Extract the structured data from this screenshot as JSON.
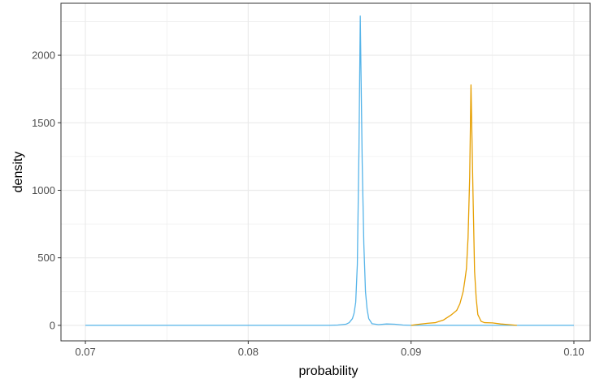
{
  "chart_data": {
    "type": "line",
    "title": "",
    "xlabel": "probability",
    "ylabel": "density",
    "xlim": [
      0.0685,
      0.101
    ],
    "ylim": [
      -115,
      2385
    ],
    "grid": true,
    "legend": "none",
    "x_ticks": [
      0.07,
      0.08,
      0.09,
      0.1
    ],
    "x_tick_labels": [
      "0.07",
      "0.08",
      "0.09",
      "0.10"
    ],
    "x_minor_ticks": [
      0.075,
      0.085,
      0.095
    ],
    "y_ticks": [
      0,
      500,
      1000,
      1500,
      2000
    ],
    "y_tick_labels": [
      "0",
      "500",
      "1000",
      "1500",
      "2000"
    ],
    "y_minor_ticks": [
      250,
      750,
      1250,
      1750,
      2250
    ],
    "colors": {
      "background": "#ffffff",
      "grid": "#ebebeb",
      "border": "#333333"
    },
    "series": [
      {
        "color": "#56B4E9",
        "points": [
          [
            0.07,
            0
          ],
          [
            0.08,
            0
          ],
          [
            0.085,
            0
          ],
          [
            0.0855,
            2
          ],
          [
            0.086,
            8
          ],
          [
            0.0862,
            20
          ],
          [
            0.0864,
            50
          ],
          [
            0.0865,
            90
          ],
          [
            0.0866,
            170
          ],
          [
            0.0867,
            450
          ],
          [
            0.0868,
            1300
          ],
          [
            0.08688,
            2290
          ],
          [
            0.087,
            1200
          ],
          [
            0.0871,
            600
          ],
          [
            0.0872,
            250
          ],
          [
            0.0873,
            120
          ],
          [
            0.0874,
            50
          ],
          [
            0.0876,
            12
          ],
          [
            0.088,
            5
          ],
          [
            0.0885,
            10
          ],
          [
            0.089,
            8
          ],
          [
            0.0895,
            2
          ],
          [
            0.09,
            0
          ],
          [
            0.095,
            0
          ],
          [
            0.1,
            0
          ]
        ]
      },
      {
        "color": "#E69F00",
        "points": [
          [
            0.09,
            0
          ],
          [
            0.0905,
            8
          ],
          [
            0.091,
            15
          ],
          [
            0.0915,
            20
          ],
          [
            0.092,
            40
          ],
          [
            0.0925,
            80
          ],
          [
            0.0928,
            110
          ],
          [
            0.093,
            160
          ],
          [
            0.0932,
            250
          ],
          [
            0.0933,
            330
          ],
          [
            0.0934,
            420
          ],
          [
            0.0935,
            650
          ],
          [
            0.0936,
            1100
          ],
          [
            0.09368,
            1780
          ],
          [
            0.0938,
            1000
          ],
          [
            0.0939,
            400
          ],
          [
            0.094,
            200
          ],
          [
            0.0941,
            80
          ],
          [
            0.0943,
            30
          ],
          [
            0.0945,
            20
          ],
          [
            0.095,
            18
          ],
          [
            0.0955,
            10
          ],
          [
            0.096,
            5
          ],
          [
            0.0965,
            0
          ]
        ]
      }
    ]
  }
}
